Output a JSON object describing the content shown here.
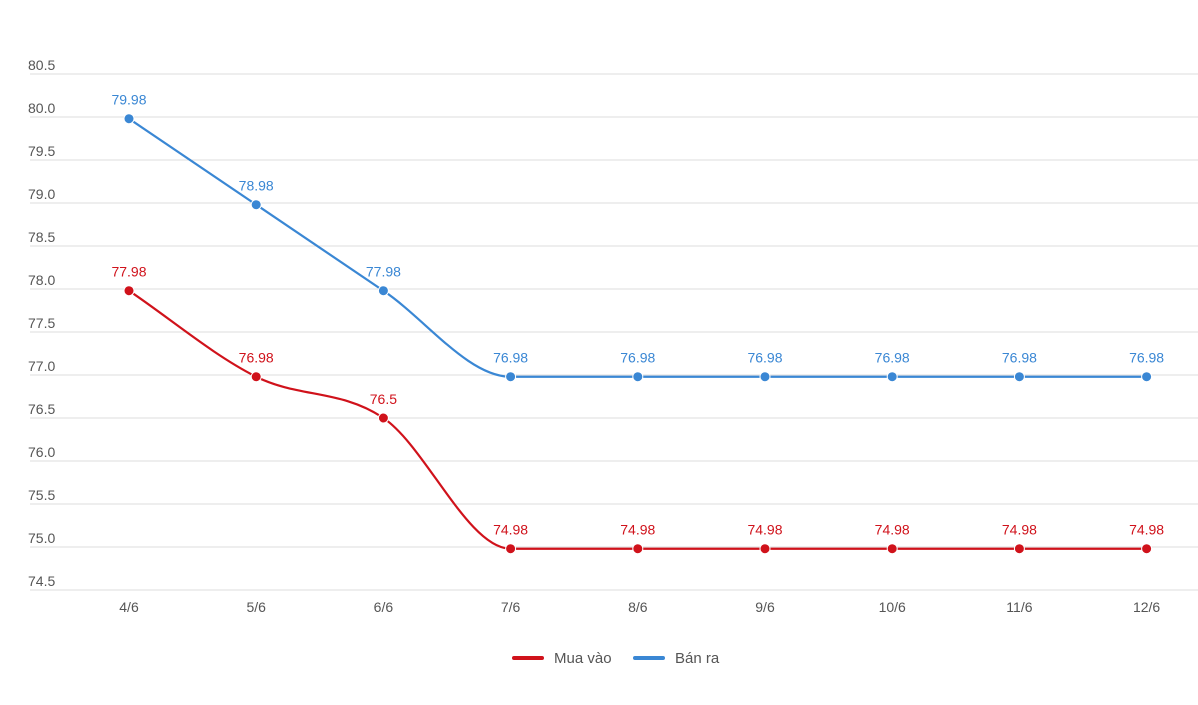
{
  "chart_data": {
    "type": "line",
    "categories": [
      "4/6",
      "5/6",
      "6/6",
      "7/6",
      "8/6",
      "9/6",
      "10/6",
      "11/6",
      "12/6"
    ],
    "series": [
      {
        "name": "Mua vào",
        "color": "#d0121b",
        "values": [
          77.98,
          76.98,
          76.5,
          74.98,
          74.98,
          74.98,
          74.98,
          74.98,
          74.98
        ],
        "labels": [
          "77.98",
          "76.98",
          "76.5",
          "74.98",
          "74.98",
          "74.98",
          "74.98",
          "74.98",
          "74.98"
        ]
      },
      {
        "name": "Bán ra",
        "color": "#3a87d4",
        "values": [
          79.98,
          78.98,
          77.98,
          76.98,
          76.98,
          76.98,
          76.98,
          76.98,
          76.98
        ],
        "labels": [
          "79.98",
          "78.98",
          "77.98",
          "76.98",
          "76.98",
          "76.98",
          "76.98",
          "76.98",
          "76.98"
        ]
      }
    ],
    "yticks": [
      "80.5",
      "80.0",
      "79.5",
      "79.0",
      "78.5",
      "78.0",
      "77.5",
      "77.0",
      "76.5",
      "76.0",
      "75.5",
      "75.0",
      "74.5"
    ],
    "ylim": [
      74.5,
      80.5
    ],
    "grid": true,
    "legend_position": "bottom-center"
  }
}
